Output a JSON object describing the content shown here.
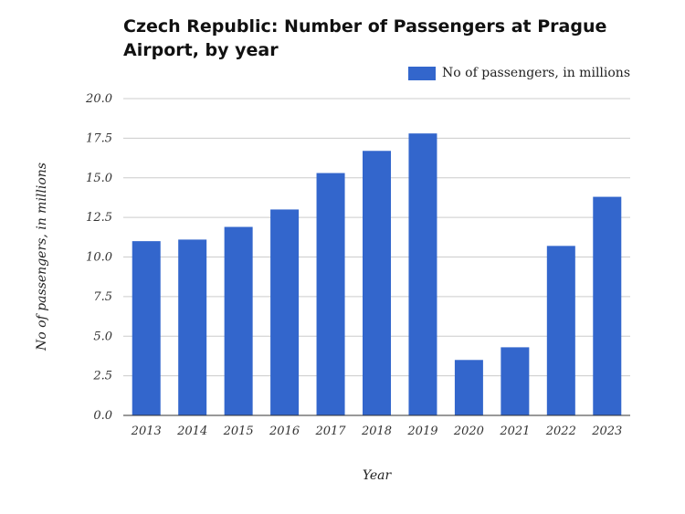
{
  "chart_data": {
    "type": "bar",
    "title": "Czech Republic: Number of Passengers at Prague Airport, by year",
    "xlabel": "Year",
    "ylabel": "No of passengers, in millions",
    "categories": [
      "2013",
      "2014",
      "2015",
      "2016",
      "2017",
      "2018",
      "2019",
      "2020",
      "2021",
      "2022",
      "2023"
    ],
    "series": [
      {
        "name": "No of passengers, in millions",
        "values": [
          11.0,
          11.1,
          11.9,
          13.0,
          15.3,
          16.7,
          17.8,
          3.5,
          4.3,
          10.7,
          13.8
        ],
        "color": "#3366cc"
      }
    ],
    "ylim": [
      0,
      20
    ],
    "yticks": [
      "0.0",
      "2.5",
      "5.0",
      "7.5",
      "10.0",
      "12.5",
      "15.0",
      "17.5",
      "20.0"
    ],
    "grid": true,
    "legend": "top-right"
  }
}
